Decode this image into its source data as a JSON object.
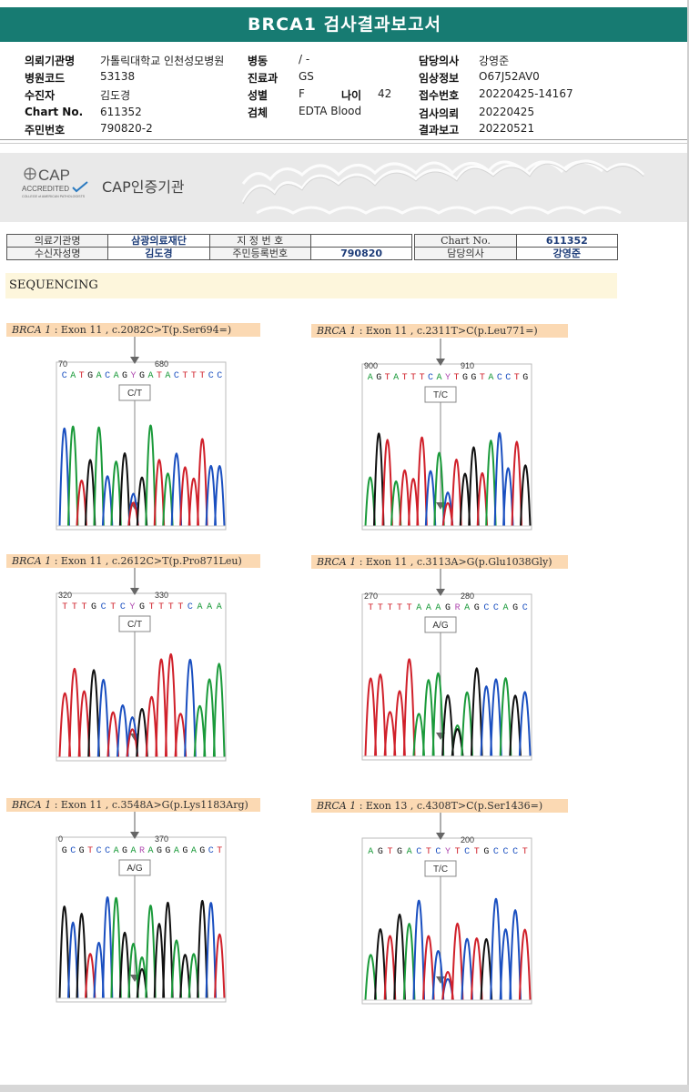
{
  "title": "BRCA1 검사결과보고서",
  "header": {
    "col1": [
      {
        "label": "의뢰기관명",
        "value": "가톨릭대학교 인천성모병원"
      },
      {
        "label": "병원코드",
        "value": "53138"
      },
      {
        "label": "수진자",
        "value": "김도경"
      },
      {
        "label": "Chart No.",
        "value": "611352"
      },
      {
        "label": "주민번호",
        "value": "790820-2"
      }
    ],
    "col2": [
      {
        "label": "병동",
        "value": "/ -"
      },
      {
        "label": "진료과",
        "value": "GS"
      },
      {
        "label": "성별",
        "value": "F"
      },
      {
        "label": "검체",
        "value": "EDTA Blood"
      }
    ],
    "age": {
      "label": "나이",
      "value": "42"
    },
    "col3": [
      {
        "label": "담당의사",
        "value": "강영준"
      },
      {
        "label": "임상정보",
        "value": "O67J52AV0"
      },
      {
        "label": "접수번호",
        "value": "20220425-14167"
      },
      {
        "label": "검사의뢰",
        "value": "20220425"
      },
      {
        "label": "결과보고",
        "value": "20220521"
      }
    ]
  },
  "banner": {
    "cap_main": "CAP",
    "cap_accredited": "ACCREDITED",
    "cap_small": "COLLEGE of AMERICAN PATHOLOGISTS",
    "cap_label": "CAP인증기관"
  },
  "info_table": {
    "r1": [
      "의료기관명",
      "삼광의료재단",
      "지 정 번 호",
      "",
      "Chart No.",
      "611352"
    ],
    "r2": [
      "수신자성명",
      "김도경",
      "주민등록번호",
      "790820",
      "담당의사",
      "강영준"
    ]
  },
  "section": "SEQUENCING",
  "colors": {
    "A": "#1a9a3a",
    "C": "#1a4fc0",
    "G": "#111111",
    "T": "#d0202a",
    "R": "#b04ab0",
    "Y": "#b04ab0",
    "teal": "#177b72"
  },
  "variants": [
    {
      "gene": "BRCA 1",
      "text": " : Exon 11 , c.2082C>T(p.Ser694=)",
      "seq": "CATGACAGYGATACTTTCC",
      "n1": "70",
      "n2": "680",
      "call": "C/T"
    },
    {
      "gene": "BRCA 1",
      "text": " : Exon 11 , c.2311T>C(p.Leu771=)",
      "seq": "AGTATTTCAYTGGTACCTG",
      "n1": "900",
      "n2": "910",
      "call": "T/C"
    },
    {
      "gene": "BRCA 1",
      "text": " : Exon 11 , c.2612C>T(p.Pro871Leu)",
      "seq": "TTTGCTCYGTTTTCAAA",
      "n1": "320",
      "n2": "330",
      "call": "C/T"
    },
    {
      "gene": "BRCA 1",
      "text": " : Exon 11 , c.3113A>G(p.Glu1038Gly)",
      "seq": "TTTTTAAAGRAGCCAGC",
      "n1": "270",
      "n2": "280",
      "call": "A/G"
    },
    {
      "gene": "BRCA 1",
      "text": " : Exon 11 , c.3548A>G(p.Lys1183Arg)",
      "seq": "GCGTCCAGARAGGAGAGCT",
      "n1": "0",
      "n2": "370",
      "call": "A/G"
    },
    {
      "gene": "BRCA 1",
      "text": " : Exon 13 , c.4308T>C(p.Ser1436=)",
      "seq": "AGTGACTCYTCTGCCCT",
      "n1": "",
      "n2": "200",
      "call": "T/C"
    }
  ]
}
